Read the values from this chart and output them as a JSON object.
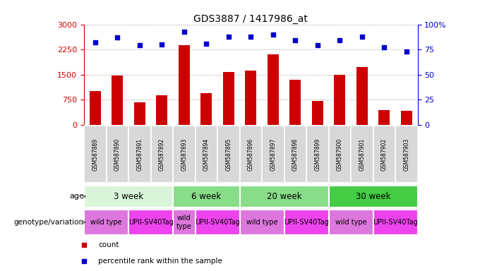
{
  "title": "GDS3887 / 1417986_at",
  "samples": [
    "GSM587889",
    "GSM587890",
    "GSM587891",
    "GSM587892",
    "GSM587893",
    "GSM587894",
    "GSM587895",
    "GSM587896",
    "GSM587897",
    "GSM587898",
    "GSM587899",
    "GSM587900",
    "GSM587901",
    "GSM587902",
    "GSM587903"
  ],
  "counts": [
    1000,
    1480,
    670,
    870,
    2380,
    950,
    1570,
    1620,
    2100,
    1350,
    700,
    1500,
    1720,
    430,
    420
  ],
  "percentiles": [
    82,
    87,
    79,
    80,
    93,
    81,
    88,
    88,
    90,
    84,
    79,
    84,
    88,
    77,
    73
  ],
  "bar_color": "#cc0000",
  "dot_color": "#0000cc",
  "left_axis_color": "#cc0000",
  "right_axis_color": "#0000cc",
  "ylim_left": [
    0,
    3000
  ],
  "ylim_right": [
    0,
    100
  ],
  "left_ticks": [
    0,
    750,
    1500,
    2250,
    3000
  ],
  "right_ticks": [
    0,
    25,
    50,
    75,
    100
  ],
  "right_tick_labels": [
    "0",
    "25",
    "50",
    "75",
    "100%"
  ],
  "age_groups": [
    {
      "label": "3 week",
      "start": 0,
      "end": 4,
      "color": "#d9f5d9"
    },
    {
      "label": "6 week",
      "start": 4,
      "end": 7,
      "color": "#88dd88"
    },
    {
      "label": "20 week",
      "start": 7,
      "end": 11,
      "color": "#88dd88"
    },
    {
      "label": "30 week",
      "start": 11,
      "end": 15,
      "color": "#44cc44"
    }
  ],
  "geno_groups": [
    {
      "label": "wild type",
      "start": 0,
      "end": 2,
      "color": "#dd77dd"
    },
    {
      "label": "UPII-SV40Tag",
      "start": 2,
      "end": 4,
      "color": "#ee44ee"
    },
    {
      "label": "wild\ntype",
      "start": 4,
      "end": 5,
      "color": "#dd77dd"
    },
    {
      "label": "UPII-SV40Tag",
      "start": 5,
      "end": 7,
      "color": "#ee44ee"
    },
    {
      "label": "wild type",
      "start": 7,
      "end": 9,
      "color": "#dd77dd"
    },
    {
      "label": "UPII-SV40Tag",
      "start": 9,
      "end": 11,
      "color": "#ee44ee"
    },
    {
      "label": "wild type",
      "start": 11,
      "end": 13,
      "color": "#dd77dd"
    },
    {
      "label": "UPII-SV40Tag",
      "start": 13,
      "end": 15,
      "color": "#ee44ee"
    }
  ],
  "legend_items": [
    {
      "label": "count",
      "color": "#cc0000"
    },
    {
      "label": "percentile rank within the sample",
      "color": "#0000cc"
    }
  ],
  "age_label": "age",
  "geno_label": "genotype/variation",
  "background_color": "#ffffff",
  "grid_color": "#888888",
  "xlabel_bg": "#d8d8d8",
  "xlabel_border": "#aaaaaa"
}
